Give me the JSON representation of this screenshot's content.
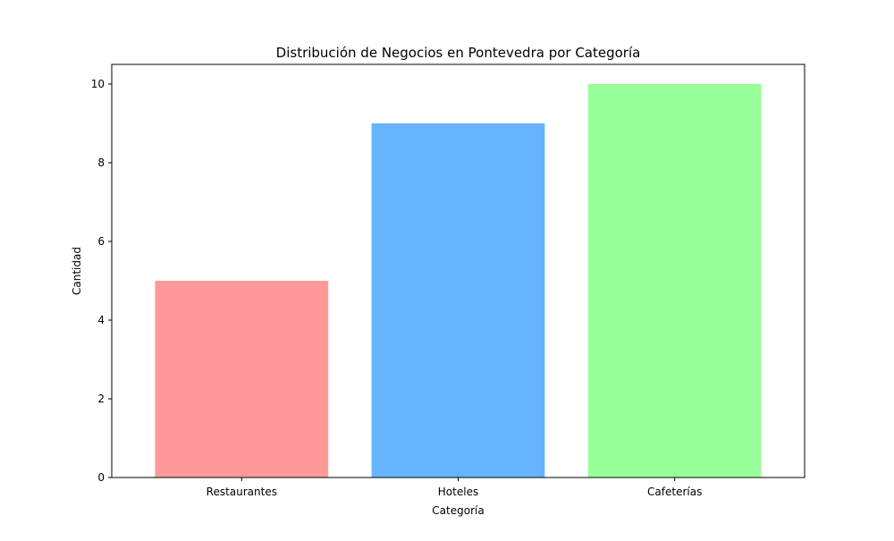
{
  "chart_data": {
    "type": "bar",
    "title": "Distribución de Negocios en Pontevedra por Categoría",
    "xlabel": "Categoría",
    "ylabel": "Cantidad",
    "categories": [
      "Restaurantes",
      "Hoteles",
      "Cafeterías"
    ],
    "values": [
      5,
      9,
      10
    ],
    "colors": [
      "#ff9999",
      "#66b3ff",
      "#99ff99"
    ],
    "ylim": [
      0,
      10.5
    ],
    "yticks": [
      "0",
      "2",
      "4",
      "6",
      "8",
      "10"
    ],
    "grid": false,
    "legend": "none"
  }
}
